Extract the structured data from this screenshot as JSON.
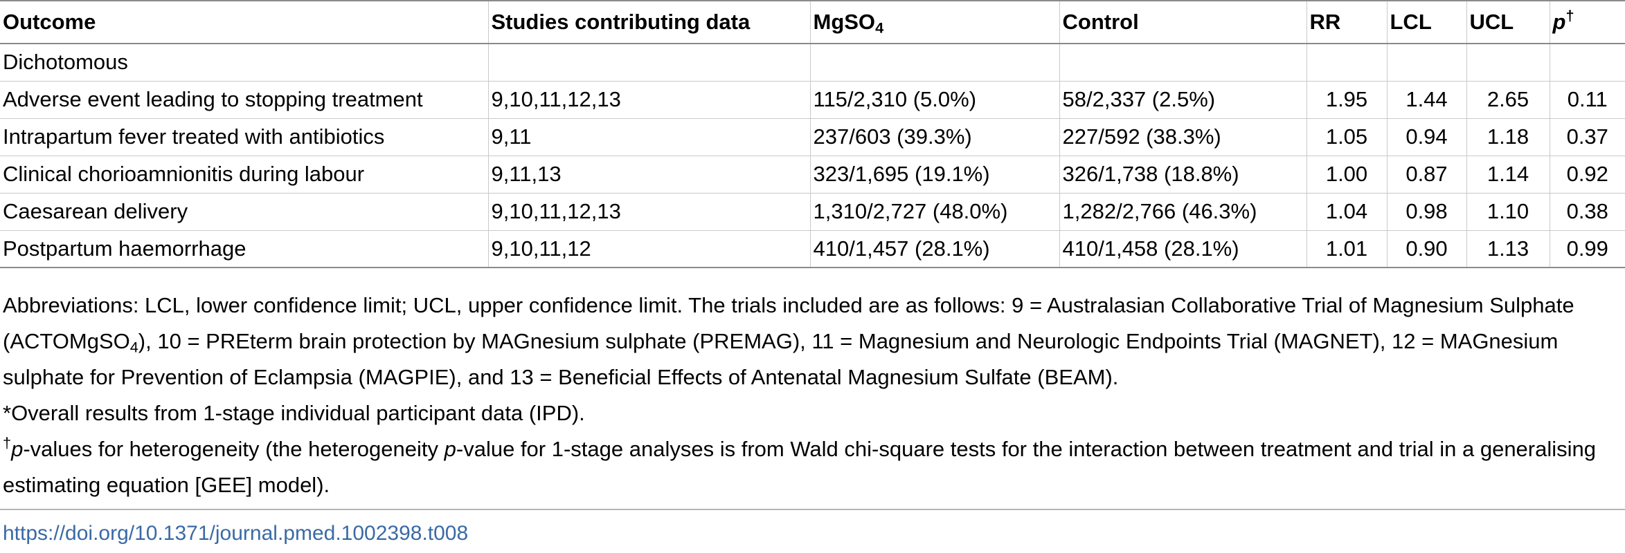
{
  "header": {
    "outcome": "Outcome",
    "studies": "Studies contributing data",
    "mgso4_main": "MgSO",
    "mgso4_sub": "4",
    "control": "Control",
    "rr": "RR",
    "lcl": "LCL",
    "ucl": "UCL",
    "p_main": "p",
    "p_sup": "†"
  },
  "section_label": "Dichotomous",
  "rows": [
    {
      "outcome": "Adverse event leading to stopping treatment",
      "studies": "9,10,11,12,13",
      "mgso4": "115/2,310 (5.0%)",
      "control": "58/2,337 (2.5%)",
      "rr": "1.95",
      "lcl": "1.44",
      "ucl": "2.65",
      "p": "0.11"
    },
    {
      "outcome": "Intrapartum fever treated with antibiotics",
      "studies": "9,11",
      "mgso4": "237/603 (39.3%)",
      "control": "227/592 (38.3%)",
      "rr": "1.05",
      "lcl": "0.94",
      "ucl": "1.18",
      "p": "0.37"
    },
    {
      "outcome": "Clinical chorioamnionitis during labour",
      "studies": "9,11,13",
      "mgso4": "323/1,695 (19.1%)",
      "control": "326/1,738 (18.8%)",
      "rr": "1.00",
      "lcl": "0.87",
      "ucl": "1.14",
      "p": "0.92"
    },
    {
      "outcome": "Caesarean delivery",
      "studies": "9,10,11,12,13",
      "mgso4": "1,310/2,727 (48.0%)",
      "control": "1,282/2,766 (46.3%)",
      "rr": "1.04",
      "lcl": "0.98",
      "ucl": "1.10",
      "p": "0.38"
    },
    {
      "outcome": "Postpartum haemorrhage",
      "studies": "9,10,11,12",
      "mgso4": "410/1,457 (28.1%)",
      "control": "410/1,458 (28.1%)",
      "rr": "1.01",
      "lcl": "0.90",
      "ucl": "1.13",
      "p": "0.99"
    }
  ],
  "notes": {
    "abbrev_part1": "Abbreviations: LCL, lower confidence limit; UCL, upper confidence limit. The trials included are as follows: 9 = Australasian Collaborative Trial of Magnesium Sulphate (ACTOMgSO",
    "abbrev_sub": "4",
    "abbrev_part2": "), 10 = PREterm brain protection by MAGnesium sulphate (PREMAG), 11 = Magnesium and Neurologic Endpoints Trial (MAGNET), 12 = MAGnesium sulphate for Prevention of Eclampsia (MAGPIE), and 13 = Beneficial Effects of Antenatal Magnesium Sulfate (BEAM).",
    "star": "*Overall results from 1-stage individual participant data (IPD).",
    "dagger_mark": "†",
    "dagger_p1": "p",
    "dagger_text1": "-values for heterogeneity (the heterogeneity ",
    "dagger_p2": "p",
    "dagger_text2": "-value for 1-stage analyses is from Wald chi-square tests for the interaction between treatment and trial in a generalising estimating equation [GEE] model)."
  },
  "doi": "https://doi.org/10.1371/journal.pmed.1002398.t008"
}
